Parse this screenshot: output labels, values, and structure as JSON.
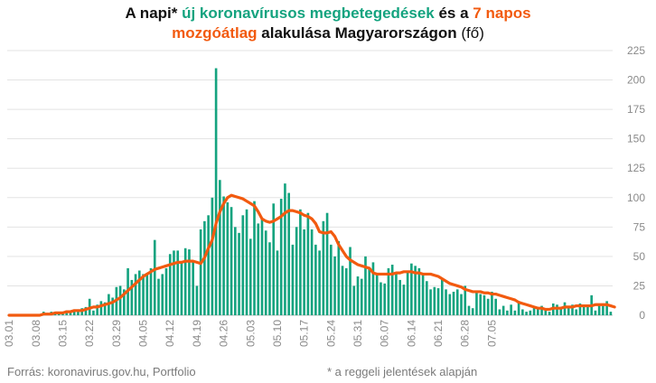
{
  "title": {
    "line1": [
      {
        "text": "A napi* ",
        "style": "bold"
      },
      {
        "text": "új koronavírusos megbetegedések",
        "style": "green"
      },
      {
        "text": " és a ",
        "style": "bold"
      },
      {
        "text": "7 napos",
        "style": "orange"
      }
    ],
    "line2": [
      {
        "text": "mozgóátlag",
        "style": "orange"
      },
      {
        "text": " alakulása Magyarországon ",
        "style": "bold"
      },
      {
        "text": "(fő)",
        "style": "normal"
      }
    ]
  },
  "footer": {
    "source": "Forrás: koronavirus.gov.hu, Portfolio",
    "note": "* a reggeli jelentések alapján"
  },
  "colors": {
    "bars": "#14a37f",
    "line": "#f25a0f",
    "grid": "#e3e3e3",
    "axis_text": "#8a8a8a"
  },
  "chart_data": {
    "type": "bar",
    "start_label": "03.01",
    "tick_labels": [
      "03.01",
      "03.08",
      "03.15",
      "03.22",
      "03.29",
      "04.05",
      "04.12",
      "04.19",
      "04.26",
      "05.03",
      "05.10",
      "05.17",
      "05.24",
      "05.31",
      "06.07",
      "06.14",
      "06.21",
      "06.28",
      "07.05"
    ],
    "ylim": [
      0,
      225
    ],
    "yticks": [
      0,
      25,
      50,
      75,
      100,
      125,
      150,
      175,
      200,
      225
    ],
    "y_axis_position": "right",
    "grid": true,
    "series": [
      {
        "name": "új koronavírusos megbetegedések",
        "type": "bar",
        "values": [
          0,
          0,
          0,
          1,
          0,
          0,
          0,
          0,
          0,
          3,
          2,
          3,
          3,
          2,
          2,
          4,
          3,
          5,
          3,
          6,
          7,
          14,
          4,
          9,
          12,
          11,
          18,
          15,
          24,
          25,
          22,
          40,
          30,
          35,
          38,
          35,
          36,
          40,
          64,
          31,
          35,
          40,
          52,
          55,
          55,
          45,
          57,
          56,
          45,
          25,
          73,
          80,
          85,
          100,
          210,
          115,
          101,
          96,
          92,
          75,
          70,
          85,
          90,
          65,
          97,
          78,
          82,
          72,
          62,
          95,
          55,
          99,
          112,
          104,
          60,
          75,
          90,
          73,
          87,
          73,
          60,
          55,
          80,
          87,
          60,
          50,
          63,
          42,
          40,
          58,
          25,
          33,
          31,
          50,
          40,
          45,
          36,
          28,
          27,
          40,
          43,
          35,
          30,
          26,
          37,
          44,
          42,
          40,
          35,
          29,
          22,
          24,
          23,
          31,
          22,
          18,
          20,
          22,
          18,
          25,
          8,
          6,
          20,
          18,
          17,
          14,
          20,
          14,
          5,
          8,
          4,
          9,
          4,
          12,
          5,
          3,
          4,
          7,
          5,
          8,
          6,
          3,
          10,
          9,
          7,
          11,
          6,
          9,
          5,
          10,
          7,
          9,
          17,
          4,
          10,
          8,
          12,
          3
        ]
      },
      {
        "name": "7 napos mozgóátlag",
        "type": "line",
        "values": [
          0,
          0,
          0,
          0,
          0,
          0,
          0,
          0,
          0,
          1,
          1,
          1,
          2,
          2,
          2,
          3,
          3,
          4,
          4,
          4,
          5,
          6,
          7,
          7,
          8,
          9,
          10,
          11,
          13,
          15,
          18,
          21,
          24,
          27,
          30,
          33,
          35,
          37,
          39,
          40,
          41,
          42,
          43,
          44,
          45,
          45,
          46,
          46,
          46,
          45,
          44,
          49,
          57,
          64,
          78,
          88,
          95,
          100,
          102,
          101,
          100,
          99,
          97,
          95,
          93,
          88,
          82,
          80,
          79,
          80,
          82,
          84,
          87,
          89,
          89,
          88,
          87,
          85,
          84,
          82,
          78,
          71,
          70,
          70,
          71,
          67,
          60,
          55,
          50,
          47,
          45,
          43,
          42,
          41,
          40,
          36,
          35,
          35,
          35,
          35,
          35,
          36,
          36,
          37,
          37,
          37,
          36,
          36,
          35,
          35,
          35,
          34,
          33,
          31,
          29,
          27,
          26,
          25,
          24,
          22,
          21,
          20,
          20,
          20,
          19,
          19,
          18,
          18,
          17,
          16,
          15,
          14,
          13,
          11,
          10,
          9,
          8,
          7,
          6,
          6,
          5,
          5,
          6,
          6,
          6,
          7,
          7,
          7,
          8,
          8,
          8,
          8,
          8,
          9,
          9,
          9,
          9,
          8,
          7
        ]
      }
    ]
  }
}
